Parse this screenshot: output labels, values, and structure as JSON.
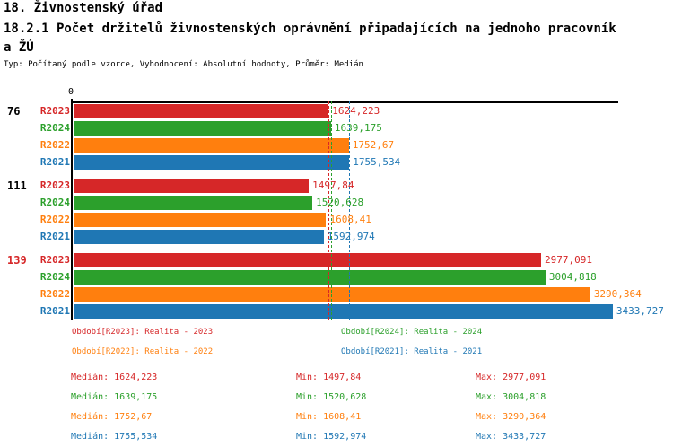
{
  "header": {
    "title": "18. Živnostenský úřad",
    "subtitle_line1": "18.2.1 Počet držitelů živnostenských oprávnění připadajících na jednoho pracovník",
    "subtitle_line2": "a ŽÚ",
    "meta": "Typ: Počítaný podle vzorce, Vyhodnocení: Absolutní hodnoty, Průměr: Medián"
  },
  "colors": {
    "R2023": "#d62728",
    "R2024": "#2ca02c",
    "R2022": "#ff7f0e",
    "R2021": "#1f77b4",
    "axis": "#000000"
  },
  "chart_data": {
    "type": "bar",
    "orientation": "horizontal",
    "title": "18.2.1 Počet držitelů živnostenských oprávnění připadajících na jednoho pracovníka ŽÚ",
    "x_axis": {
      "origin_label": "0",
      "min": 0,
      "max": 3470,
      "gridlines": false
    },
    "series_order": [
      "R2023",
      "R2024",
      "R2022",
      "R2021"
    ],
    "groups": [
      {
        "label": "76",
        "label_color": "#000000",
        "bars": [
          {
            "series": "R2023",
            "value": 1624.223,
            "display": "1624,223",
            "color": "#d62728"
          },
          {
            "series": "R2024",
            "value": 1639.175,
            "display": "1639,175",
            "color": "#2ca02c"
          },
          {
            "series": "R2022",
            "value": 1752.67,
            "display": "1752,67",
            "color": "#ff7f0e"
          },
          {
            "series": "R2021",
            "value": 1755.534,
            "display": "1755,534",
            "color": "#1f77b4"
          }
        ]
      },
      {
        "label": "111",
        "label_color": "#000000",
        "bars": [
          {
            "series": "R2023",
            "value": 1497.84,
            "display": "1497,84",
            "color": "#d62728"
          },
          {
            "series": "R2024",
            "value": 1520.628,
            "display": "1520,628",
            "color": "#2ca02c"
          },
          {
            "series": "R2022",
            "value": 1608.41,
            "display": "1608,41",
            "color": "#ff7f0e"
          },
          {
            "series": "R2021",
            "value": 1592.974,
            "display": "1592,974",
            "color": "#1f77b4"
          }
        ]
      },
      {
        "label": "139",
        "label_color": "#d62728",
        "bars": [
          {
            "series": "R2023",
            "value": 2977.091,
            "display": "2977,091",
            "color": "#d62728"
          },
          {
            "series": "R2024",
            "value": 3004.818,
            "display": "3004,818",
            "color": "#2ca02c"
          },
          {
            "series": "R2022",
            "value": 3290.364,
            "display": "3290,364",
            "color": "#ff7f0e"
          },
          {
            "series": "R2021",
            "value": 3433.727,
            "display": "3433,727",
            "color": "#1f77b4"
          }
        ]
      }
    ],
    "median_lines": [
      {
        "series": "R2023",
        "value": 1624.223,
        "color": "#d62728"
      },
      {
        "series": "R2024",
        "value": 1639.175,
        "color": "#2ca02c"
      },
      {
        "series": "R2022",
        "value": 1752.67,
        "color": "#ff7f0e"
      },
      {
        "series": "R2021",
        "value": 1755.534,
        "color": "#1f77b4"
      }
    ]
  },
  "legend": {
    "items": [
      {
        "text": "Období[R2023]: Realita - 2023",
        "color": "#d62728",
        "row": 0,
        "col": 0
      },
      {
        "text": "Období[R2024]: Realita - 2024",
        "color": "#2ca02c",
        "row": 0,
        "col": 1
      },
      {
        "text": "Období[R2022]: Realita - 2022",
        "color": "#ff7f0e",
        "row": 1,
        "col": 0
      },
      {
        "text": "Období[R2021]: Realita - 2021",
        "color": "#1f77b4",
        "row": 1,
        "col": 1
      }
    ]
  },
  "stats": {
    "rows": [
      {
        "series": "R2023",
        "median": "Medián: 1624,223",
        "min": "Min: 1497,84",
        "max": "Max: 2977,091",
        "color": "#d62728"
      },
      {
        "series": "R2024",
        "median": "Medián: 1639,175",
        "min": "Min: 1520,628",
        "max": "Max: 3004,818",
        "color": "#2ca02c"
      },
      {
        "series": "R2022",
        "median": "Medián: 1752,67",
        "min": "Min: 1608,41",
        "max": "Max: 3290,364",
        "color": "#ff7f0e"
      },
      {
        "series": "R2021",
        "median": "Medián: 1755,534",
        "min": "Min: 1592,974",
        "max": "Max: 3433,727",
        "color": "#1f77b4"
      }
    ]
  }
}
